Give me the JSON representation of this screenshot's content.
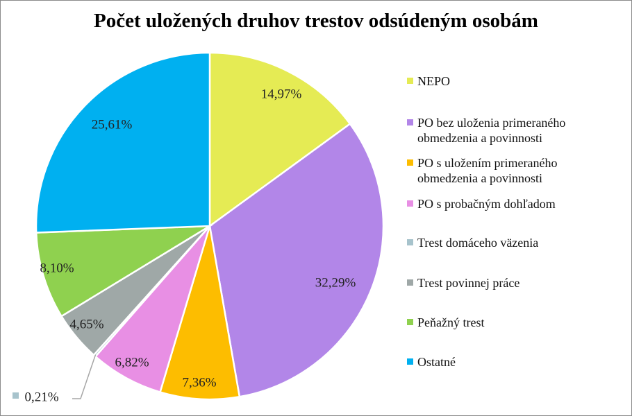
{
  "chart_data": {
    "type": "pie",
    "title": "Počet uložených druhov trestov odsúdeným osobám",
    "legend_position": "right",
    "slices": [
      {
        "name": "NEPO",
        "value": 14.97,
        "label": "14,97%",
        "color": "#e5eb54"
      },
      {
        "name": "PO bez uloženia primeraného obmedzenia a povinnosti",
        "value": 32.29,
        "label": "32,29%",
        "color": "#b286e8"
      },
      {
        "name": "PO s uložením primeraného obmedzenia a povinnosti",
        "value": 7.36,
        "label": "7,36%",
        "color": "#fdbd00"
      },
      {
        "name": "PO s probačným dohľadom",
        "value": 6.82,
        "label": "6,82%",
        "color": "#e88fe4"
      },
      {
        "name": "Trest domáceho väzenia",
        "value": 0.21,
        "label": "0,21%",
        "color": "#a7c3cc"
      },
      {
        "name": "Trest povinnej práce",
        "value": 4.65,
        "label": "4,65%",
        "color": "#9fa8a7"
      },
      {
        "name": "Peňažný trest",
        "value": 8.1,
        "label": "8,10%",
        "color": "#8fd14f"
      },
      {
        "name": "Ostatné",
        "value": 25.61,
        "label": "25,61%",
        "color": "#00b0f0"
      }
    ]
  }
}
